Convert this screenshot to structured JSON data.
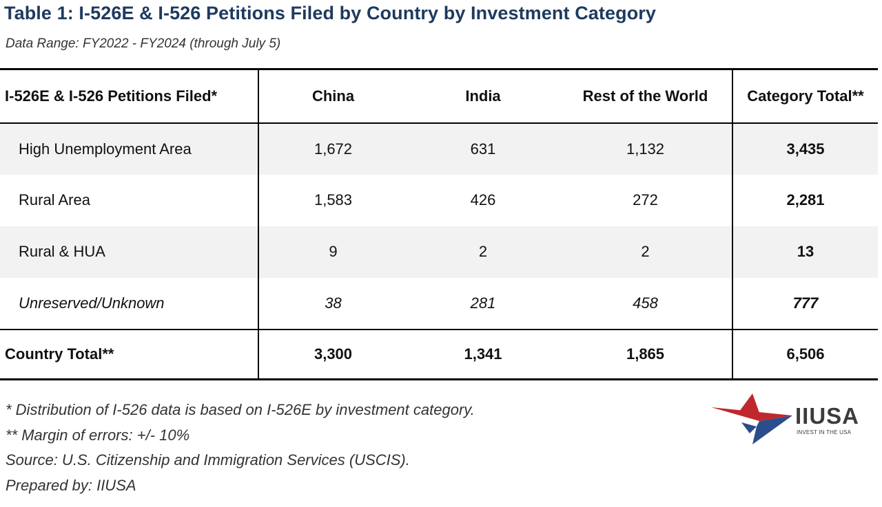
{
  "title": "Table 1: I-526E & I-526 Petitions Filed by Country by Investment Category",
  "subtitle": "Data Range: FY2022 - FY2024 (through July 5)",
  "table": {
    "headers": [
      "I-526E & I-526 Petitions Filed*",
      "China",
      "India",
      "Rest of the World",
      "Category Total**"
    ],
    "rows": [
      {
        "label": "High Unemployment Area",
        "china": "1,672",
        "india": "631",
        "rest": "1,132",
        "total": "3,435"
      },
      {
        "label": "Rural Area",
        "china": "1,583",
        "india": "426",
        "rest": "272",
        "total": "2,281"
      },
      {
        "label": "Rural & HUA",
        "china": "9",
        "india": "2",
        "rest": "2",
        "total": "13"
      },
      {
        "label": "Unreserved/Unknown",
        "china": "38",
        "india": "281",
        "rest": "458",
        "total": "777"
      }
    ],
    "totals": {
      "label": "Country Total**",
      "china": "3,300",
      "india": "1,341",
      "rest": "1,865",
      "total": "6,506"
    }
  },
  "notes": [
    "* Distribution of I-526 data is based on I-526E by investment category.",
    "** Margin of errors: +/- 10%",
    "Source: U.S. Citizenship and Immigration Services (USCIS).",
    "Prepared by: IIUSA"
  ],
  "logo": {
    "name": "IIUSA",
    "tagline": "INVEST IN THE USA",
    "red": "#c0282d",
    "blue": "#2b4d8c"
  }
}
